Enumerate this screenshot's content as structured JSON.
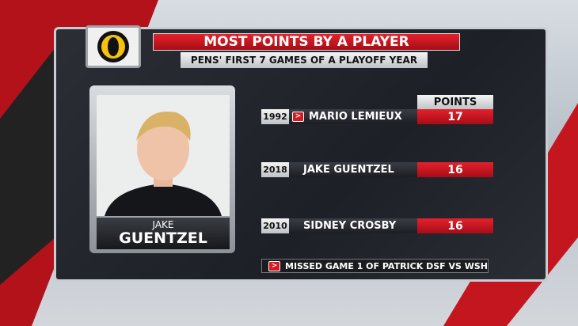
{
  "header": {
    "title": "MOST POINTS BY A PLAYER",
    "subtitle": "PENS' FIRST 7 GAMES OF A PLAYOFF YEAR"
  },
  "player": {
    "first_name": "JAKE",
    "last_name": "GUENTZEL"
  },
  "table": {
    "column_header": "POINTS",
    "rows": [
      {
        "year": "1992",
        "name": "MARIO LEMIEUX",
        "points": 17
      },
      {
        "year": "2018",
        "name": "JAKE GUENTZEL",
        "points": 16
      },
      {
        "year": "2010",
        "name": "SIDNEY CROSBY",
        "points": 16
      }
    ]
  },
  "footnote": "MISSED GAME 1 OF PATRICK DSF VS WSH"
}
